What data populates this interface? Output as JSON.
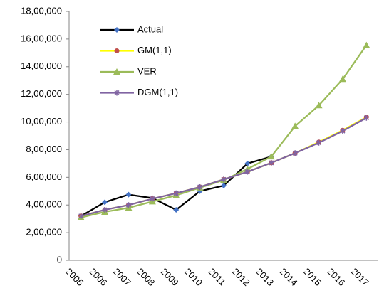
{
  "chart_data": {
    "type": "line",
    "categories": [
      "2005",
      "2006",
      "2007",
      "2008",
      "2009",
      "2010",
      "2011",
      "2012",
      "2013",
      "2014",
      "2015",
      "2016",
      "2017"
    ],
    "ylim": [
      0,
      1800000
    ],
    "yticks": [
      0,
      {
        "value": 200000,
        "label": "2,00,000"
      },
      {
        "value": 400000,
        "label": "4,00,000"
      },
      {
        "value": 600000,
        "label": "6,00,000"
      },
      {
        "value": 800000,
        "label": "8,00,000"
      },
      {
        "value": 1000000,
        "label": "10,00,000"
      },
      {
        "value": 1200000,
        "label": "12,00,000"
      },
      {
        "value": 1400000,
        "label": "14,00,000"
      },
      {
        "value": 1600000,
        "label": "16,00,000"
      },
      {
        "value": 1800000,
        "label": "18,00,000"
      }
    ],
    "series": [
      {
        "name": "Actual",
        "color": "#000000",
        "marker_color": "#4472c4",
        "marker": "diamond",
        "values": [
          320000,
          420000,
          475000,
          450000,
          365000,
          500000,
          540000,
          700000,
          750000,
          null,
          null,
          null,
          null
        ]
      },
      {
        "name": "GM(1,1)",
        "color": "#ffff00",
        "marker_color": "#c0504d",
        "marker": "circle",
        "values": [
          320000,
          365000,
          400000,
          445000,
          485000,
          530000,
          585000,
          640000,
          705000,
          775000,
          855000,
          940000,
          1035000
        ]
      },
      {
        "name": "VER",
        "color": "#9bbb59",
        "marker_color": "#9bbb59",
        "marker": "triangle",
        "values": [
          310000,
          350000,
          380000,
          425000,
          470000,
          525000,
          580000,
          660000,
          750000,
          970000,
          1120000,
          1310000,
          1555000
        ]
      },
      {
        "name": "DGM(1,1)",
        "color": "#8064a2",
        "marker_color": "#8064a2",
        "marker": "star",
        "values": [
          320000,
          365000,
          400000,
          445000,
          485000,
          530000,
          585000,
          640000,
          705000,
          775000,
          850000,
          935000,
          1030000
        ]
      }
    ]
  }
}
